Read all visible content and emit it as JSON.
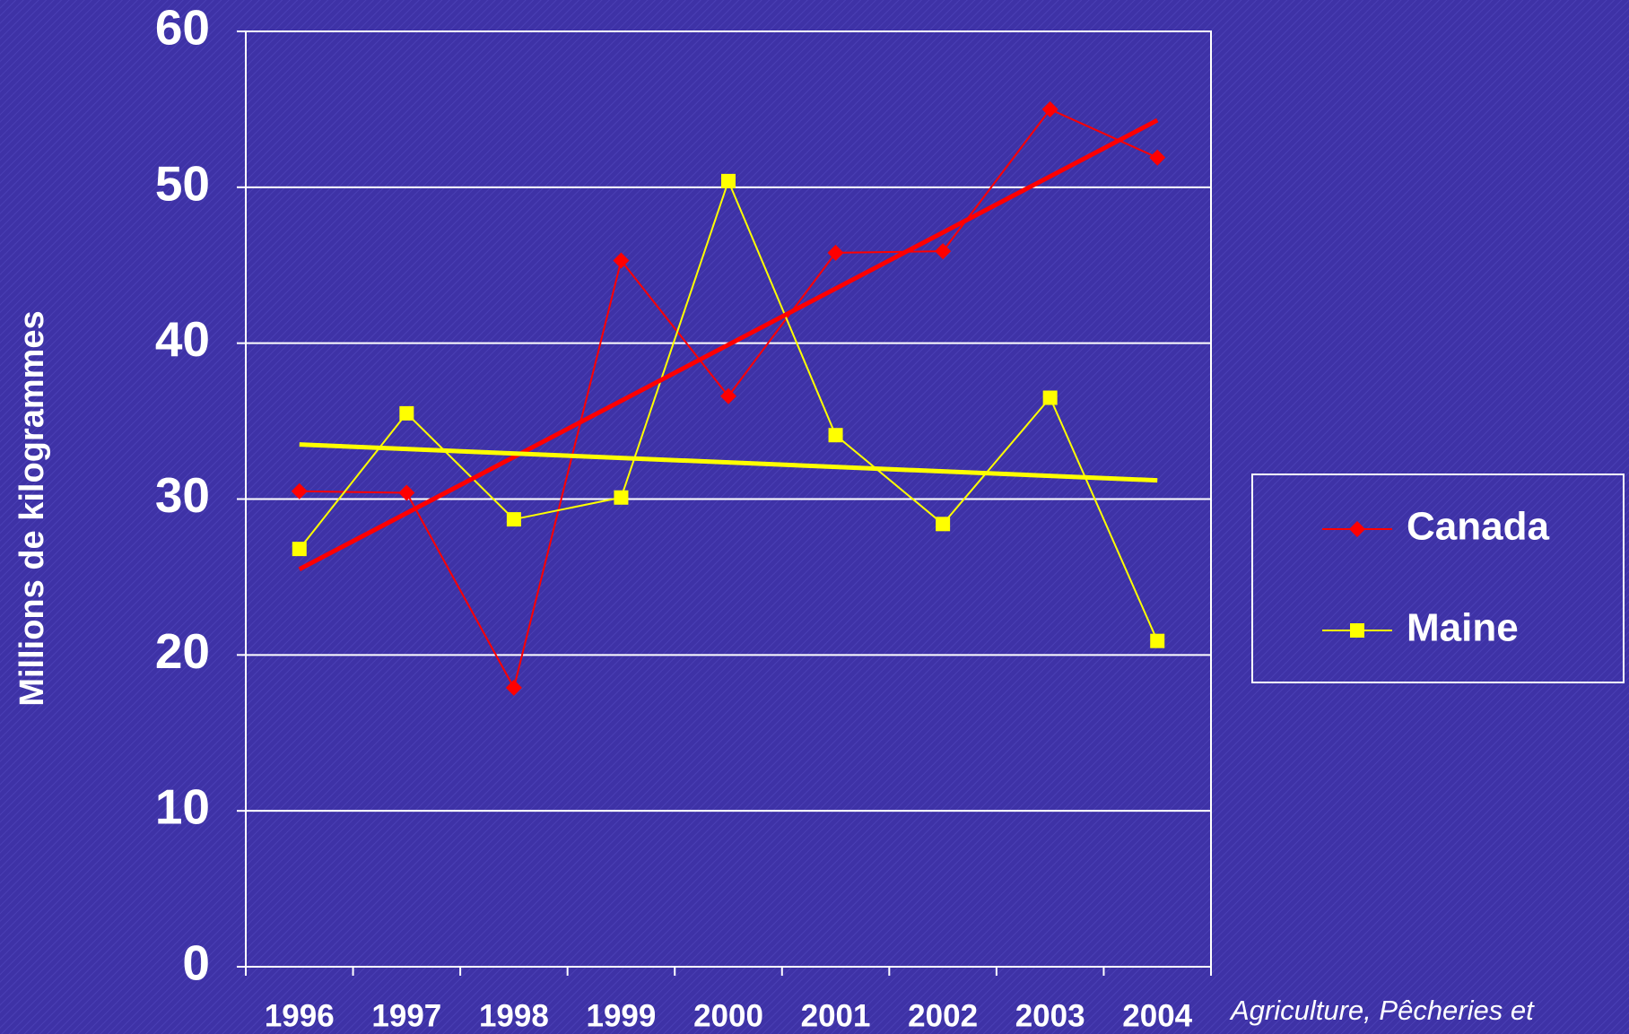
{
  "chart_data": {
    "type": "line",
    "y_label": "Millions de kilogrammes",
    "source": "Agriculture, Pêcheries et",
    "categories": [
      "1996",
      "1997",
      "1998",
      "1999",
      "2000",
      "2001",
      "2002",
      "2003",
      "2004"
    ],
    "series": [
      {
        "name": "Canada",
        "color": "#ff0000",
        "marker": "diamond",
        "values": [
          30.5,
          30.4,
          17.9,
          45.3,
          36.6,
          45.8,
          45.9,
          55.0,
          51.9
        ]
      },
      {
        "name": "Maine",
        "color": "#ffff00",
        "marker": "square",
        "values": [
          26.8,
          35.5,
          28.7,
          30.1,
          50.4,
          34.1,
          28.4,
          36.5,
          20.9
        ]
      }
    ],
    "trendlines": [
      {
        "color": "#ff0000",
        "values": [
          25.5,
          54.3
        ]
      },
      {
        "color": "#ffff00",
        "values": [
          33.5,
          31.2
        ]
      }
    ],
    "ylim": [
      0,
      60
    ],
    "yticks": [
      0,
      10,
      20,
      30,
      40,
      50,
      60
    ],
    "grid": true,
    "legend": "right"
  }
}
